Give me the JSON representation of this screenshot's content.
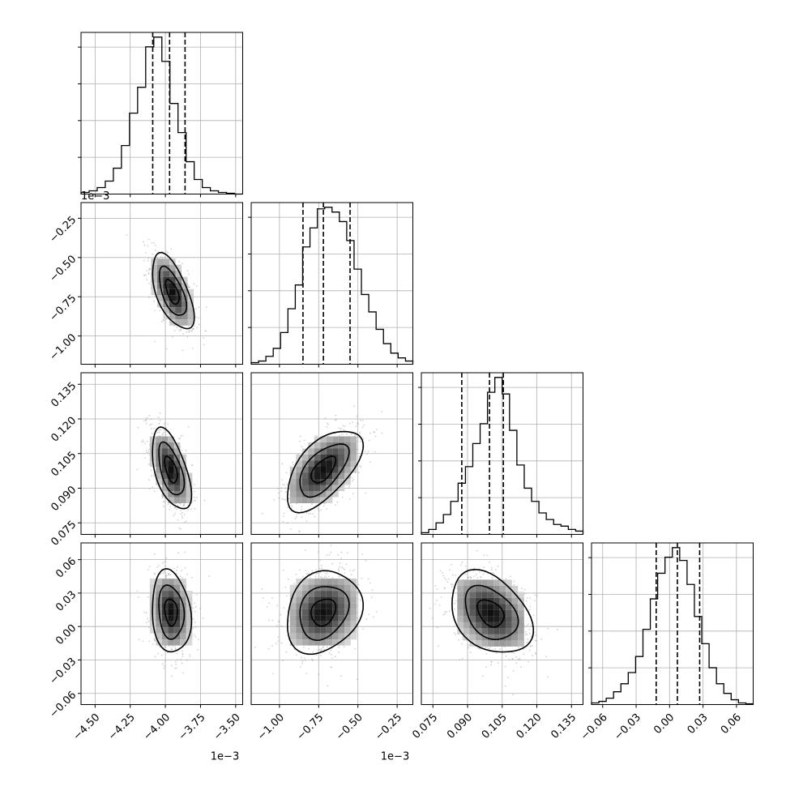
{
  "chart_data": {
    "type": "corner",
    "parameters": [
      {
        "range": [
          -4.6,
          -3.45
        ],
        "ticks": [
          "−4.50",
          "−4.25",
          "−4.00",
          "−3.75",
          "−3.50"
        ],
        "tick_values": [
          -4.5,
          -4.25,
          -4.0,
          -3.75,
          -3.5
        ],
        "offset_label": "1e−3",
        "quantiles": [
          -4.09,
          -3.97,
          -3.86
        ],
        "hist": [
          0.01,
          0.02,
          0.04,
          0.08,
          0.16,
          0.3,
          0.5,
          0.66,
          0.91,
          0.97,
          0.82,
          0.56,
          0.38,
          0.2,
          0.09,
          0.04,
          0.02,
          0.01,
          0.005,
          0.0
        ]
      },
      {
        "range": [
          -1.18,
          -0.15
        ],
        "ticks": [
          "−1.00",
          "−0.75",
          "−0.50",
          "−0.25"
        ],
        "tick_values": [
          -1.0,
          -0.75,
          -0.5,
          -0.25
        ],
        "offset_label": "1e−3",
        "quantiles": [
          -0.85,
          -0.72,
          -0.55
        ],
        "hist": [
          0.01,
          0.02,
          0.05,
          0.1,
          0.2,
          0.35,
          0.5,
          0.74,
          0.86,
          0.98,
          0.99,
          0.96,
          0.9,
          0.78,
          0.6,
          0.44,
          0.33,
          0.22,
          0.13,
          0.07,
          0.04,
          0.02
        ]
      },
      {
        "range": [
          0.07,
          0.14
        ],
        "ticks": [
          "0.075",
          "0.090",
          "0.105",
          "0.120",
          "0.135"
        ],
        "tick_values": [
          0.075,
          0.09,
          0.105,
          0.12,
          0.135
        ],
        "offset_label": "",
        "quantiles": [
          0.0875,
          0.0995,
          0.1055
        ],
        "hist": [
          0.01,
          0.03,
          0.07,
          0.12,
          0.2,
          0.31,
          0.41,
          0.55,
          0.67,
          0.86,
          0.95,
          0.85,
          0.63,
          0.42,
          0.28,
          0.2,
          0.13,
          0.09,
          0.06,
          0.05,
          0.03,
          0.02
        ]
      },
      {
        "range": [
          -0.07,
          0.075
        ],
        "ticks": [
          "−0.06",
          "−0.03",
          "0.00",
          "0.03",
          "0.06"
        ],
        "tick_values": [
          -0.06,
          -0.03,
          0.0,
          0.03,
          0.06
        ],
        "offset_label": "",
        "quantiles": [
          -0.012,
          0.007,
          0.027
        ],
        "hist": [
          0.01,
          0.02,
          0.04,
          0.08,
          0.13,
          0.2,
          0.3,
          0.47,
          0.66,
          0.82,
          0.92,
          0.98,
          0.9,
          0.75,
          0.55,
          0.38,
          0.23,
          0.13,
          0.07,
          0.03,
          0.01,
          0.005
        ]
      }
    ],
    "pairs": [
      {
        "row": 1,
        "col": 0,
        "center": [
          -3.95,
          -0.72
        ],
        "sigma": [
          0.08,
          0.13
        ],
        "rho": -0.6
      },
      {
        "row": 2,
        "col": 0,
        "center": [
          -3.96,
          0.098
        ],
        "sigma": [
          0.075,
          0.0095
        ],
        "rho": -0.55
      },
      {
        "row": 2,
        "col": 1,
        "center": [
          -0.72,
          0.098
        ],
        "sigma": [
          0.13,
          0.0095
        ],
        "rho": 0.6
      },
      {
        "row": 3,
        "col": 0,
        "center": [
          -3.96,
          0.013
        ],
        "sigma": [
          0.075,
          0.02
        ],
        "rho": -0.15
      },
      {
        "row": 3,
        "col": 1,
        "center": [
          -0.72,
          0.013
        ],
        "sigma": [
          0.13,
          0.02
        ],
        "rho": 0.2
      },
      {
        "row": 3,
        "col": 2,
        "center": [
          0.1,
          0.012
        ],
        "sigma": [
          0.0095,
          0.02
        ],
        "rho": -0.35
      }
    ]
  }
}
